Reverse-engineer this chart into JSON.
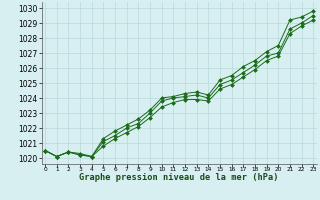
{
  "hours": [
    0,
    1,
    2,
    3,
    4,
    5,
    6,
    7,
    8,
    9,
    10,
    11,
    12,
    13,
    14,
    15,
    16,
    17,
    18,
    19,
    20,
    21,
    22,
    23
  ],
  "series1": [
    1020.5,
    1020.1,
    1020.4,
    1020.3,
    1020.1,
    1021.3,
    1021.8,
    1022.2,
    1022.6,
    1023.2,
    1024.0,
    1024.1,
    1024.3,
    1024.4,
    1024.2,
    1025.2,
    1025.5,
    1026.1,
    1026.5,
    1027.1,
    1027.5,
    1029.2,
    1029.4,
    1029.8
  ],
  "series2": [
    1020.5,
    1020.1,
    1020.4,
    1020.2,
    1020.1,
    1021.1,
    1021.5,
    1022.0,
    1022.3,
    1023.0,
    1023.8,
    1024.0,
    1024.1,
    1024.2,
    1024.0,
    1024.9,
    1025.2,
    1025.7,
    1026.2,
    1026.8,
    1027.0,
    1028.6,
    1029.0,
    1029.5
  ],
  "series3": [
    1020.5,
    1020.1,
    1020.4,
    1020.2,
    1020.1,
    1020.8,
    1021.3,
    1021.7,
    1022.1,
    1022.7,
    1023.4,
    1023.7,
    1023.9,
    1023.9,
    1023.8,
    1024.6,
    1024.9,
    1025.4,
    1025.9,
    1026.5,
    1026.8,
    1028.3,
    1028.8,
    1029.2
  ],
  "line_color": "#1a6b1a",
  "marker": "D",
  "markersize": 2.0,
  "bg_color": "#d7eff0",
  "grid_color": "#b8d8da",
  "ylabel_values": [
    1020,
    1021,
    1022,
    1023,
    1024,
    1025,
    1026,
    1027,
    1028,
    1029,
    1030
  ],
  "ylim": [
    1019.6,
    1030.4
  ],
  "xlim": [
    -0.3,
    23.3
  ],
  "xlabel": "Graphe pression niveau de la mer (hPa)"
}
